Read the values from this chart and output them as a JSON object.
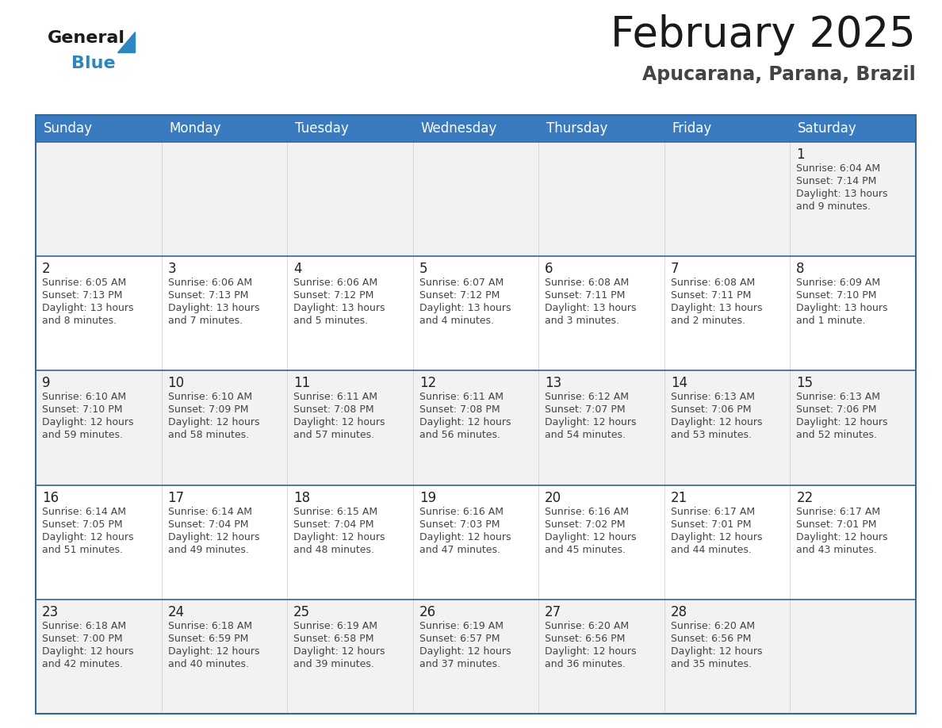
{
  "title": "February 2025",
  "subtitle": "Apucarana, Parana, Brazil",
  "header_color": "#3a7abf",
  "header_text_color": "#ffffff",
  "cell_bg_even": "#f2f2f2",
  "cell_bg_odd": "#ffffff",
  "border_color": "#336699",
  "day_names": [
    "Sunday",
    "Monday",
    "Tuesday",
    "Wednesday",
    "Thursday",
    "Friday",
    "Saturday"
  ],
  "title_color": "#1a1a1a",
  "subtitle_color": "#444444",
  "day_number_color": "#222222",
  "day_info_color": "#444444",
  "calendar": [
    [
      null,
      null,
      null,
      null,
      null,
      null,
      {
        "day": 1,
        "sunrise": "6:04 AM",
        "sunset": "7:14 PM",
        "daylight_hours": 13,
        "daylight_minutes": 9
      }
    ],
    [
      {
        "day": 2,
        "sunrise": "6:05 AM",
        "sunset": "7:13 PM",
        "daylight_hours": 13,
        "daylight_minutes": 8
      },
      {
        "day": 3,
        "sunrise": "6:06 AM",
        "sunset": "7:13 PM",
        "daylight_hours": 13,
        "daylight_minutes": 7
      },
      {
        "day": 4,
        "sunrise": "6:06 AM",
        "sunset": "7:12 PM",
        "daylight_hours": 13,
        "daylight_minutes": 5
      },
      {
        "day": 5,
        "sunrise": "6:07 AM",
        "sunset": "7:12 PM",
        "daylight_hours": 13,
        "daylight_minutes": 4
      },
      {
        "day": 6,
        "sunrise": "6:08 AM",
        "sunset": "7:11 PM",
        "daylight_hours": 13,
        "daylight_minutes": 3
      },
      {
        "day": 7,
        "sunrise": "6:08 AM",
        "sunset": "7:11 PM",
        "daylight_hours": 13,
        "daylight_minutes": 2
      },
      {
        "day": 8,
        "sunrise": "6:09 AM",
        "sunset": "7:10 PM",
        "daylight_hours": 13,
        "daylight_minutes": 1
      }
    ],
    [
      {
        "day": 9,
        "sunrise": "6:10 AM",
        "sunset": "7:10 PM",
        "daylight_hours": 12,
        "daylight_minutes": 59
      },
      {
        "day": 10,
        "sunrise": "6:10 AM",
        "sunset": "7:09 PM",
        "daylight_hours": 12,
        "daylight_minutes": 58
      },
      {
        "day": 11,
        "sunrise": "6:11 AM",
        "sunset": "7:08 PM",
        "daylight_hours": 12,
        "daylight_minutes": 57
      },
      {
        "day": 12,
        "sunrise": "6:11 AM",
        "sunset": "7:08 PM",
        "daylight_hours": 12,
        "daylight_minutes": 56
      },
      {
        "day": 13,
        "sunrise": "6:12 AM",
        "sunset": "7:07 PM",
        "daylight_hours": 12,
        "daylight_minutes": 54
      },
      {
        "day": 14,
        "sunrise": "6:13 AM",
        "sunset": "7:06 PM",
        "daylight_hours": 12,
        "daylight_minutes": 53
      },
      {
        "day": 15,
        "sunrise": "6:13 AM",
        "sunset": "7:06 PM",
        "daylight_hours": 12,
        "daylight_minutes": 52
      }
    ],
    [
      {
        "day": 16,
        "sunrise": "6:14 AM",
        "sunset": "7:05 PM",
        "daylight_hours": 12,
        "daylight_minutes": 51
      },
      {
        "day": 17,
        "sunrise": "6:14 AM",
        "sunset": "7:04 PM",
        "daylight_hours": 12,
        "daylight_minutes": 49
      },
      {
        "day": 18,
        "sunrise": "6:15 AM",
        "sunset": "7:04 PM",
        "daylight_hours": 12,
        "daylight_minutes": 48
      },
      {
        "day": 19,
        "sunrise": "6:16 AM",
        "sunset": "7:03 PM",
        "daylight_hours": 12,
        "daylight_minutes": 47
      },
      {
        "day": 20,
        "sunrise": "6:16 AM",
        "sunset": "7:02 PM",
        "daylight_hours": 12,
        "daylight_minutes": 45
      },
      {
        "day": 21,
        "sunrise": "6:17 AM",
        "sunset": "7:01 PM",
        "daylight_hours": 12,
        "daylight_minutes": 44
      },
      {
        "day": 22,
        "sunrise": "6:17 AM",
        "sunset": "7:01 PM",
        "daylight_hours": 12,
        "daylight_minutes": 43
      }
    ],
    [
      {
        "day": 23,
        "sunrise": "6:18 AM",
        "sunset": "7:00 PM",
        "daylight_hours": 12,
        "daylight_minutes": 42
      },
      {
        "day": 24,
        "sunrise": "6:18 AM",
        "sunset": "6:59 PM",
        "daylight_hours": 12,
        "daylight_minutes": 40
      },
      {
        "day": 25,
        "sunrise": "6:19 AM",
        "sunset": "6:58 PM",
        "daylight_hours": 12,
        "daylight_minutes": 39
      },
      {
        "day": 26,
        "sunrise": "6:19 AM",
        "sunset": "6:57 PM",
        "daylight_hours": 12,
        "daylight_minutes": 37
      },
      {
        "day": 27,
        "sunrise": "6:20 AM",
        "sunset": "6:56 PM",
        "daylight_hours": 12,
        "daylight_minutes": 36
      },
      {
        "day": 28,
        "sunrise": "6:20 AM",
        "sunset": "6:56 PM",
        "daylight_hours": 12,
        "daylight_minutes": 35
      },
      null
    ]
  ],
  "logo_general_color": "#1a1a1a",
  "logo_blue_color": "#2e86c1",
  "logo_triangle_color": "#2e86c1",
  "title_fontsize": 38,
  "subtitle_fontsize": 17,
  "header_fontsize": 12,
  "day_num_fontsize": 12,
  "info_fontsize": 9
}
